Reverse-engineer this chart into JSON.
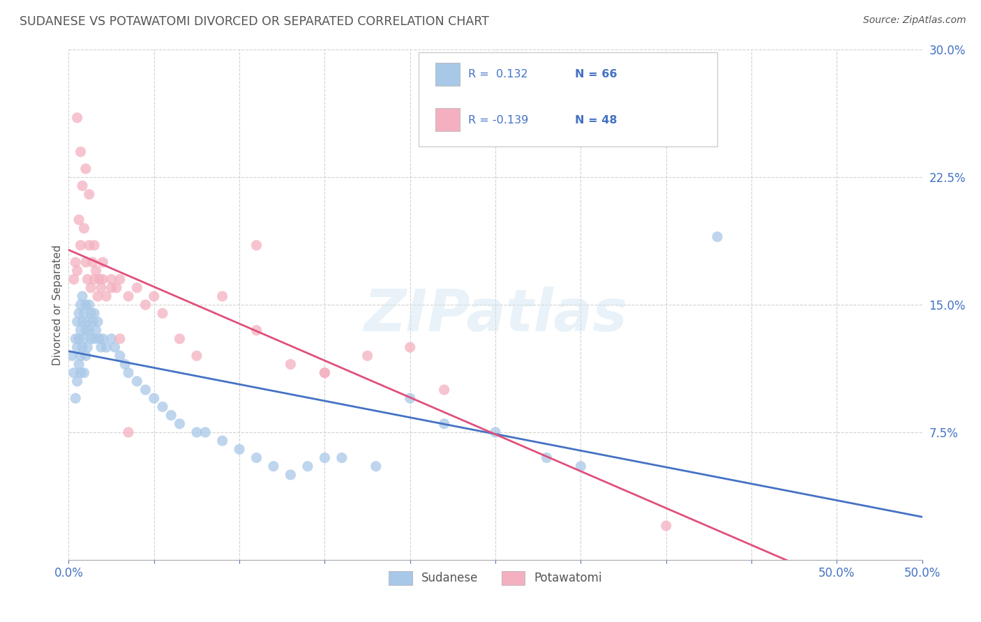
{
  "title": "SUDANESE VS POTAWATOMI DIVORCED OR SEPARATED CORRELATION CHART",
  "source": "Source: ZipAtlas.com",
  "ylabel": "Divorced or Separated",
  "xlim": [
    0.0,
    0.5
  ],
  "ylim": [
    0.0,
    0.3
  ],
  "xtick_positions": [
    0.0,
    0.05,
    0.1,
    0.15,
    0.2,
    0.25,
    0.3,
    0.35,
    0.4,
    0.45,
    0.5
  ],
  "xtick_labels_show": {
    "0.0": "0.0%",
    "0.5": "50.0%"
  },
  "yticks": [
    0.0,
    0.075,
    0.15,
    0.225,
    0.3
  ],
  "ytick_labels": [
    "",
    "7.5%",
    "15.0%",
    "22.5%",
    "30.0%"
  ],
  "legend_labels": [
    "Sudanese",
    "Potawatomi"
  ],
  "sudanese_color": "#a8c8e8",
  "potawatomi_color": "#f4b0c0",
  "sudanese_line_color": "#4472c4",
  "potawatomi_line_color": "#e0507a",
  "sudanese_R": 0.132,
  "sudanese_N": 66,
  "potawatomi_R": -0.139,
  "potawatomi_N": 48,
  "watermark": "ZIPatlas",
  "background_color": "#ffffff",
  "grid_color": "#cccccc",
  "title_color": "#555555",
  "axis_label_color": "#4472c4",
  "legend_text_color": "#4472c4",
  "sudanese_x": [
    0.002,
    0.003,
    0.004,
    0.004,
    0.005,
    0.005,
    0.005,
    0.006,
    0.006,
    0.006,
    0.007,
    0.007,
    0.007,
    0.007,
    0.008,
    0.008,
    0.008,
    0.009,
    0.009,
    0.009,
    0.01,
    0.01,
    0.01,
    0.011,
    0.011,
    0.012,
    0.012,
    0.013,
    0.013,
    0.014,
    0.015,
    0.015,
    0.016,
    0.017,
    0.018,
    0.019,
    0.02,
    0.022,
    0.025,
    0.027,
    0.03,
    0.033,
    0.035,
    0.04,
    0.045,
    0.05,
    0.055,
    0.06,
    0.065,
    0.075,
    0.08,
    0.09,
    0.1,
    0.11,
    0.12,
    0.13,
    0.14,
    0.15,
    0.16,
    0.18,
    0.2,
    0.22,
    0.25,
    0.28,
    0.3,
    0.38
  ],
  "sudanese_y": [
    0.12,
    0.11,
    0.13,
    0.095,
    0.125,
    0.14,
    0.105,
    0.115,
    0.13,
    0.145,
    0.12,
    0.135,
    0.15,
    0.11,
    0.125,
    0.14,
    0.155,
    0.13,
    0.145,
    0.11,
    0.135,
    0.15,
    0.12,
    0.14,
    0.125,
    0.15,
    0.135,
    0.145,
    0.13,
    0.14,
    0.13,
    0.145,
    0.135,
    0.14,
    0.13,
    0.125,
    0.13,
    0.125,
    0.13,
    0.125,
    0.12,
    0.115,
    0.11,
    0.105,
    0.1,
    0.095,
    0.09,
    0.085,
    0.08,
    0.075,
    0.075,
    0.07,
    0.065,
    0.06,
    0.055,
    0.05,
    0.055,
    0.06,
    0.06,
    0.055,
    0.095,
    0.08,
    0.075,
    0.06,
    0.055,
    0.19
  ],
  "potawatomi_x": [
    0.003,
    0.004,
    0.005,
    0.006,
    0.007,
    0.008,
    0.009,
    0.01,
    0.011,
    0.012,
    0.013,
    0.014,
    0.015,
    0.016,
    0.017,
    0.018,
    0.019,
    0.02,
    0.022,
    0.025,
    0.028,
    0.03,
    0.035,
    0.04,
    0.045,
    0.05,
    0.055,
    0.065,
    0.075,
    0.09,
    0.11,
    0.13,
    0.15,
    0.175,
    0.2,
    0.22,
    0.005,
    0.007,
    0.01,
    0.012,
    0.015,
    0.02,
    0.025,
    0.03,
    0.035,
    0.11,
    0.15,
    0.35
  ],
  "potawatomi_y": [
    0.165,
    0.175,
    0.17,
    0.2,
    0.185,
    0.22,
    0.195,
    0.175,
    0.165,
    0.185,
    0.16,
    0.175,
    0.165,
    0.17,
    0.155,
    0.165,
    0.16,
    0.165,
    0.155,
    0.165,
    0.16,
    0.165,
    0.155,
    0.16,
    0.15,
    0.155,
    0.145,
    0.13,
    0.12,
    0.155,
    0.135,
    0.115,
    0.11,
    0.12,
    0.125,
    0.1,
    0.26,
    0.24,
    0.23,
    0.215,
    0.185,
    0.175,
    0.16,
    0.13,
    0.075,
    0.185,
    0.11,
    0.02
  ]
}
